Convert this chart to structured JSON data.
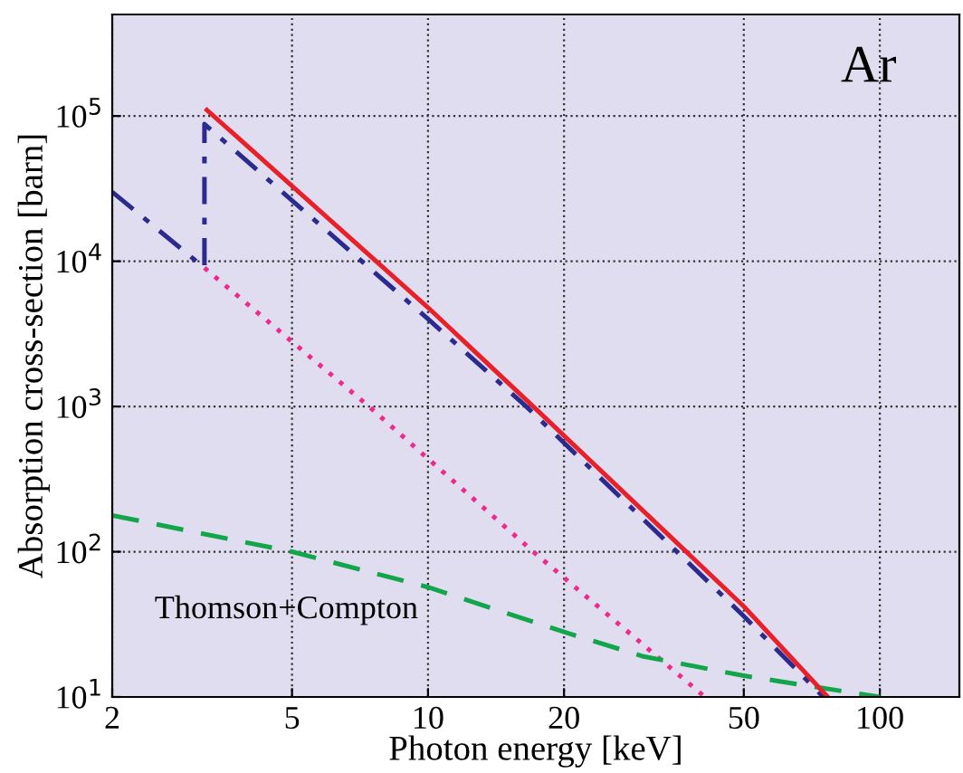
{
  "chart_data": {
    "type": "line",
    "xlabel": "Photon energy [keV]",
    "ylabel": "Absorption cross-section [barn]",
    "log": "xy",
    "grid": true,
    "xlim": [
      2,
      150
    ],
    "xticks": [
      2,
      5,
      10,
      20,
      50,
      100
    ],
    "ylim": [
      10,
      500000
    ],
    "yticks": [
      {
        "value": 10,
        "label": "10$^{1}$"
      },
      {
        "value": 100,
        "label": "10$^{2}$"
      },
      {
        "value": 1000,
        "label": "10$^{3}$"
      },
      {
        "value": 10000,
        "label": "10$^{4}$"
      },
      {
        "value": 100000,
        "label": "10$^{5}$"
      }
    ],
    "series": [
      {
        "color": "#2b2b8f",
        "line_style": "dashdot",
        "x": [
          2,
          3.2,
          3.2,
          10,
          16.5,
          50,
          75
        ],
        "values": [
          30000,
          9000,
          88000,
          4000,
          1000,
          36,
          10
        ]
      },
      {
        "color": "#ee2a8c",
        "line_style": "dotted",
        "x": [
          3.2,
          7.4,
          17.1,
          41
        ],
        "values": [
          9000,
          1000,
          100,
          10
        ]
      },
      {
        "color": "#12a54a",
        "line_style": "dashed",
        "x": [
          2,
          5,
          10,
          20,
          30,
          50,
          100
        ],
        "values": [
          178,
          100,
          57,
          28,
          19,
          14,
          10
        ]
      },
      {
        "color": "#e8202a",
        "line_style": "solid",
        "x": [
          3.24,
          10,
          17.1,
          50,
          76.7
        ],
        "values": [
          110000,
          4800,
          1000,
          42,
          10
        ]
      }
    ],
    "annotations": [
      "Ar",
      "Thomson+Compton"
    ]
  }
}
